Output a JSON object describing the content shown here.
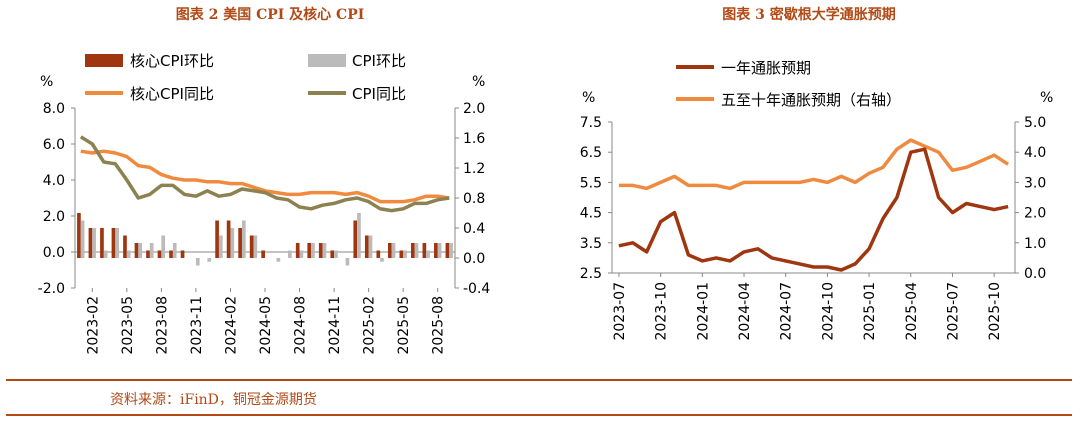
{
  "titles": {
    "left": "图表 2 美国 CPI 及核心 CPI",
    "right": "图表 3 密歇根大学通胀预期"
  },
  "source": "资料来源：iFinD，铜冠金源期货",
  "colors": {
    "title": "#b24a17",
    "core_mom": "#a0360f",
    "cpi_mom": "#bbbbbb",
    "core_yoy": "#f08a3e",
    "cpi_yoy": "#8c8150",
    "exp_1y": "#a0360f",
    "exp_5_10y": "#f08a3e"
  },
  "chart_data": [
    {
      "type": "bar+line",
      "title": "图表 2 美国 CPI 及核心 CPI",
      "left_axis": {
        "unit": "%",
        "ylim": [
          -2.0,
          8.0
        ],
        "ticks": [
          "-2.0",
          "0.0",
          "2.0",
          "4.0",
          "6.0",
          "8.0"
        ]
      },
      "right_axis": {
        "unit": "%",
        "ylim": [
          -0.4,
          2.0
        ],
        "ticks": [
          "-0.4",
          "0.0",
          "0.4",
          "0.8",
          "1.2",
          "1.6",
          "2.0"
        ]
      },
      "x_ticks": [
        "2023-02",
        "2023-05",
        "2023-08",
        "2023-11",
        "2024-02",
        "2024-05",
        "2024-08",
        "2024-11",
        "2025-02",
        "2025-05",
        "2025-08"
      ],
      "legend": [
        "核心CPI环比",
        "CPI环比",
        "核心CPI同比",
        "CPI同比"
      ],
      "months": [
        "2023-01",
        "2023-02",
        "2023-03",
        "2023-04",
        "2023-05",
        "2023-06",
        "2023-07",
        "2023-08",
        "2023-09",
        "2023-10",
        "2023-11",
        "2023-12",
        "2024-01",
        "2024-02",
        "2024-03",
        "2024-04",
        "2024-05",
        "2024-06",
        "2024-07",
        "2024-08",
        "2024-09",
        "2024-10",
        "2024-11",
        "2024-12",
        "2025-01",
        "2025-02",
        "2025-03",
        "2025-04",
        "2025-05",
        "2025-06",
        "2025-07",
        "2025-08",
        "2025-09"
      ],
      "series": [
        {
          "name": "核心CPI环比",
          "axis": "right",
          "kind": "bar",
          "values": [
            0.6,
            0.4,
            0.4,
            0.4,
            0.3,
            0.2,
            0.1,
            0.1,
            0.1,
            0.1,
            0.0,
            0.0,
            0.5,
            0.5,
            0.4,
            0.3,
            0.1,
            0.0,
            0.0,
            0.2,
            0.2,
            0.2,
            0.1,
            0.0,
            0.5,
            0.3,
            0.1,
            0.2,
            0.1,
            0.2,
            0.2,
            0.2,
            0.2
          ]
        },
        {
          "name": "CPI环比",
          "axis": "right",
          "kind": "bar",
          "values": [
            0.5,
            0.4,
            0.1,
            0.4,
            0.1,
            0.2,
            0.2,
            0.3,
            0.2,
            0.0,
            -0.1,
            -0.05,
            0.3,
            0.4,
            0.5,
            0.3,
            0.0,
            -0.05,
            0.1,
            0.1,
            0.2,
            0.2,
            0.1,
            -0.1,
            0.6,
            0.3,
            -0.05,
            0.2,
            0.1,
            0.2,
            0.1,
            0.2,
            0.2
          ]
        },
        {
          "name": "核心CPI同比",
          "axis": "left",
          "kind": "line",
          "values": [
            5.6,
            5.5,
            5.6,
            5.5,
            5.3,
            4.8,
            4.7,
            4.3,
            4.1,
            4.0,
            4.0,
            3.9,
            3.9,
            3.8,
            3.8,
            3.6,
            3.4,
            3.3,
            3.2,
            3.2,
            3.3,
            3.3,
            3.3,
            3.2,
            3.3,
            3.1,
            2.8,
            2.8,
            2.8,
            2.9,
            3.1,
            3.1,
            3.0
          ]
        },
        {
          "name": "CPI同比",
          "axis": "left",
          "kind": "line",
          "values": [
            6.4,
            6.0,
            5.0,
            4.9,
            4.0,
            3.0,
            3.2,
            3.7,
            3.7,
            3.2,
            3.1,
            3.4,
            3.1,
            3.2,
            3.5,
            3.4,
            3.3,
            3.0,
            2.9,
            2.5,
            2.4,
            2.6,
            2.7,
            2.9,
            3.0,
            2.8,
            2.4,
            2.3,
            2.4,
            2.7,
            2.7,
            2.9,
            3.0
          ]
        }
      ]
    },
    {
      "type": "line",
      "title": "图表 3 密歇根大学通胀预期",
      "left_axis": {
        "unit": "%",
        "ylim": [
          2.5,
          7.5
        ],
        "ticks": [
          "2.5",
          "3.5",
          "4.5",
          "5.5",
          "6.5",
          "7.5"
        ]
      },
      "right_axis": {
        "unit": "%",
        "ylim": [
          0.0,
          5.0
        ],
        "ticks": [
          "0.0",
          "1.0",
          "2.0",
          "3.0",
          "4.0",
          "5.0"
        ]
      },
      "x_ticks": [
        "2023-07",
        "2023-10",
        "2024-01",
        "2024-04",
        "2024-07",
        "2024-10",
        "2025-01",
        "2025-04",
        "2025-07",
        "2025-10"
      ],
      "legend": [
        "一年通胀预期",
        "五至十年通胀预期（右轴）"
      ],
      "months": [
        "2023-07",
        "2023-08",
        "2023-09",
        "2023-10",
        "2023-11",
        "2023-12",
        "2024-01",
        "2024-02",
        "2024-03",
        "2024-04",
        "2024-05",
        "2024-06",
        "2024-07",
        "2024-08",
        "2024-09",
        "2024-10",
        "2024-11",
        "2024-12",
        "2025-01",
        "2025-02",
        "2025-03",
        "2025-04",
        "2025-05",
        "2025-06",
        "2025-07",
        "2025-08",
        "2025-09",
        "2025-10",
        "2025-11"
      ],
      "series": [
        {
          "name": "一年通胀预期",
          "axis": "left",
          "values": [
            3.4,
            3.5,
            3.2,
            4.2,
            4.5,
            3.1,
            2.9,
            3.0,
            2.9,
            3.2,
            3.3,
            3.0,
            2.9,
            2.8,
            2.7,
            2.7,
            2.6,
            2.8,
            3.3,
            4.3,
            5.0,
            6.5,
            6.6,
            5.0,
            4.5,
            4.8,
            4.7,
            4.6,
            4.7
          ]
        },
        {
          "name": "五至十年通胀预期（右轴）",
          "axis": "right",
          "values": [
            2.9,
            2.9,
            2.8,
            3.0,
            3.2,
            2.9,
            2.9,
            2.9,
            2.8,
            3.0,
            3.0,
            3.0,
            3.0,
            3.0,
            3.1,
            3.0,
            3.2,
            3.0,
            3.3,
            3.5,
            4.1,
            4.4,
            4.2,
            4.0,
            3.4,
            3.5,
            3.7,
            3.9,
            3.6
          ]
        }
      ]
    }
  ]
}
